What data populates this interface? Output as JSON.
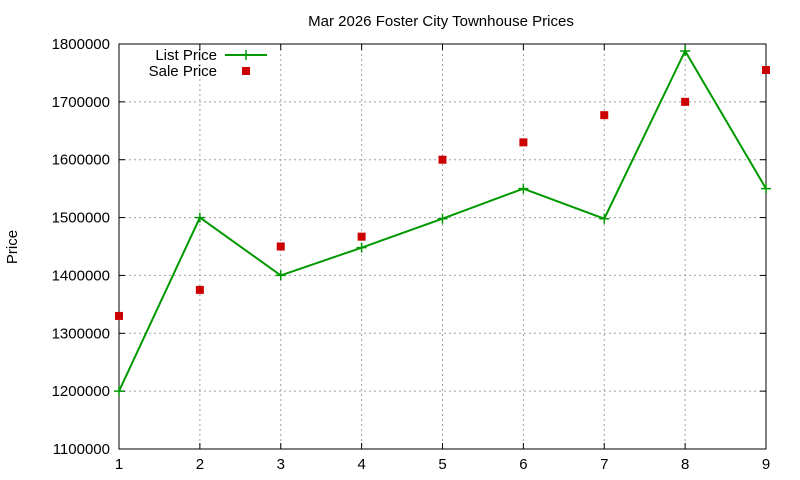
{
  "chart_data": {
    "type": "line",
    "title": "Mar 2026 Foster City Townhouse Prices",
    "xlabel": "",
    "ylabel": "Price",
    "xlim": [
      1,
      9
    ],
    "ylim": [
      1100000,
      1800000
    ],
    "x_ticks": [
      1,
      2,
      3,
      4,
      5,
      6,
      7,
      8,
      9
    ],
    "y_ticks": [
      1100000,
      1200000,
      1300000,
      1400000,
      1500000,
      1600000,
      1700000,
      1800000
    ],
    "grid": true,
    "legend_position": "top-left",
    "series": [
      {
        "name": "List Price",
        "style": "linespoints",
        "marker": "plus",
        "color": "#009900",
        "x": [
          1,
          2,
          3,
          4,
          5,
          6,
          7,
          8,
          9
        ],
        "y": [
          1200000,
          1500000,
          1400000,
          1448000,
          1498000,
          1550000,
          1498000,
          1788000,
          1550000
        ]
      },
      {
        "name": "Sale Price",
        "style": "points",
        "marker": "square",
        "color": "#cc0000",
        "x": [
          1,
          2,
          3,
          4,
          5,
          6,
          7,
          8,
          9
        ],
        "y": [
          1330000,
          1375000,
          1450000,
          1467000,
          1600000,
          1630000,
          1677000,
          1700000,
          1755000
        ]
      }
    ]
  }
}
